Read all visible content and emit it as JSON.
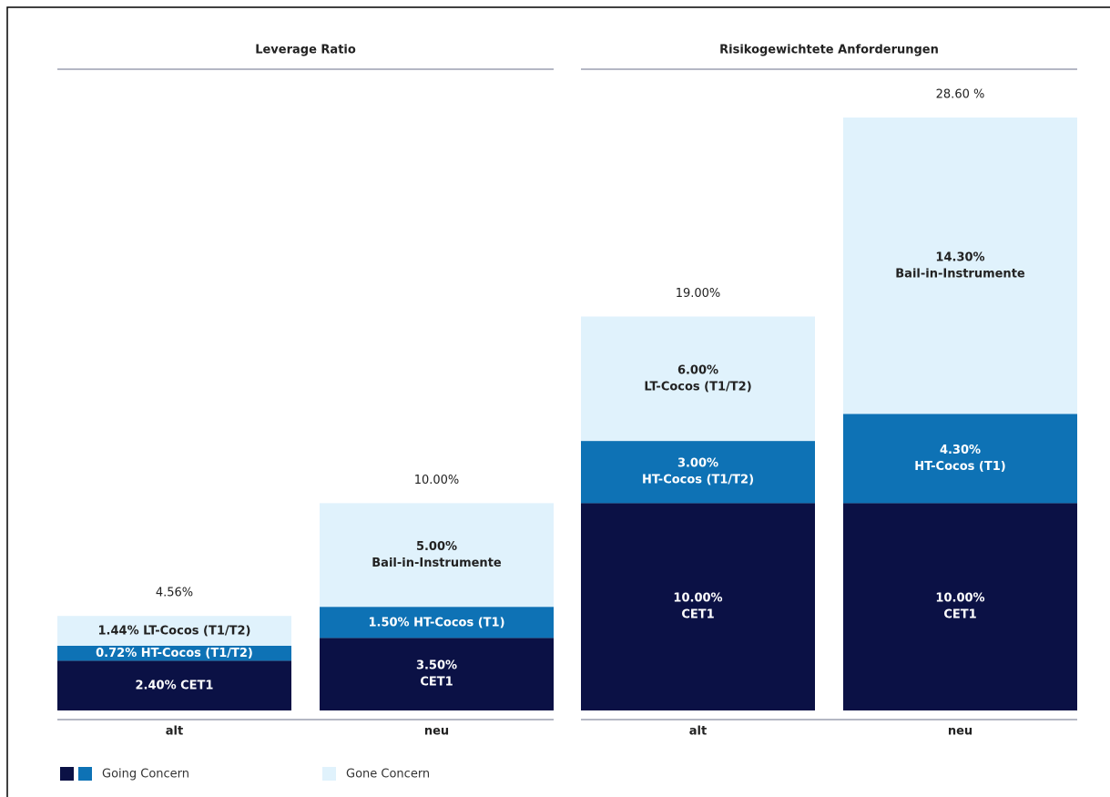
{
  "chart_data": [
    {
      "type": "stacked_bar",
      "title": "Leverage Ratio",
      "categories": [
        "alt",
        "neu"
      ],
      "series": [
        {
          "color": "#0b1145",
          "values": [
            2.4,
            3.5
          ],
          "value_labels": [
            "2.40%",
            "3.50%"
          ],
          "segment_names": [
            "CET1",
            "CET1"
          ]
        },
        {
          "color": "#0e72b5",
          "values": [
            0.72,
            1.5
          ],
          "value_labels": [
            "0.72%",
            "1.50%"
          ],
          "segment_names": [
            "HT-Cocos (T1/T2)",
            "HT-Cocos (T1)"
          ]
        },
        {
          "color": "#e0f2fc",
          "values": [
            1.44,
            5
          ],
          "value_labels": [
            "1.44%",
            "5.00%"
          ],
          "segment_names": [
            "LT-Cocos (T1/T2)",
            "Bail-in-Instrumente"
          ]
        }
      ],
      "totals": [
        4.56,
        10
      ],
      "total_labels": [
        "4.56%",
        "10.00%"
      ]
    },
    {
      "type": "stacked_bar",
      "title": "Risikogewichtete Anforderungen",
      "categories": [
        "alt",
        "neu"
      ],
      "series": [
        {
          "color": "#0b1145",
          "values": [
            10,
            10
          ],
          "value_labels": [
            "10.00%",
            "10.00%"
          ],
          "segment_names": [
            "CET1",
            "CET1"
          ]
        },
        {
          "color": "#0e72b5",
          "values": [
            3,
            4.3
          ],
          "value_labels": [
            "3.00%",
            "4.30%"
          ],
          "segment_names": [
            "HT-Cocos (T1/T2)",
            "HT-Cocos (T1)"
          ]
        },
        {
          "color": "#e0f2fc",
          "values": [
            6,
            14.3
          ],
          "value_labels": [
            "6.00%",
            "14.30%"
          ],
          "segment_names": [
            "LT-Cocos (T1/T2)",
            "Bail-in-Instrumente"
          ]
        }
      ],
      "totals": [
        19,
        28.6
      ],
      "total_labels": [
        "19.00%",
        "28.60 %"
      ]
    }
  ],
  "legend": [
    {
      "label": "Going Concern",
      "colors": [
        "#0b1145",
        "#0e72b5"
      ]
    },
    {
      "label": "Gone Concern",
      "colors": [
        "#e0f2fc"
      ]
    }
  ]
}
